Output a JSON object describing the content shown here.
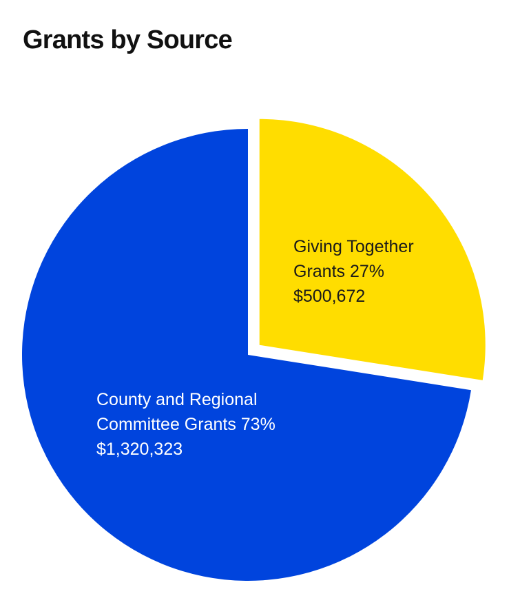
{
  "chart_data": {
    "type": "pie",
    "title": "Grants by Source",
    "slices": [
      {
        "label_lines": [
          "Giving Together",
          "Grants 27%",
          "$500,672"
        ],
        "value": 500672,
        "percent": 27,
        "color": "#FFDD00",
        "text_color": "#1a1a1a",
        "exploded": true
      },
      {
        "label_lines": [
          "County and Regional",
          "Committee Grants 73%",
          "$1,320,323"
        ],
        "value": 1320323,
        "percent": 73,
        "color": "#0044DD",
        "text_color": "#ffffff",
        "exploded": false
      }
    ]
  }
}
